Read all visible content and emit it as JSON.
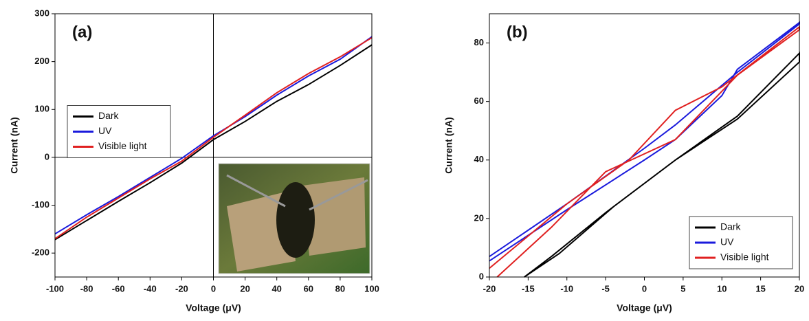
{
  "chart_data": [
    {
      "type": "line",
      "label": "(a)",
      "x_label": "Voltage (μV)",
      "y_label": "Current (nA)",
      "xlim": [
        -100,
        100
      ],
      "ylim": [
        -250,
        300
      ],
      "xticks": [
        -100,
        -80,
        -60,
        -40,
        -20,
        0,
        20,
        40,
        60,
        80,
        100
      ],
      "yticks": [
        -200,
        -100,
        0,
        100,
        200,
        300
      ],
      "zero_lines": true,
      "legend": "center left",
      "series": [
        {
          "name": "Dark",
          "color": "#000000",
          "x": [
            -100,
            -80,
            -60,
            -40,
            -20,
            0,
            20,
            40,
            60,
            80,
            100
          ],
          "values": [
            -172,
            -132,
            -92,
            -53,
            -12,
            37,
            75,
            117,
            152,
            192,
            235
          ]
        },
        {
          "name": "UV",
          "color": "#1a1adc",
          "x": [
            -100,
            -80,
            -60,
            -40,
            -20,
            0,
            20,
            40,
            60,
            80,
            100
          ],
          "values": [
            -160,
            -120,
            -82,
            -42,
            -2,
            45,
            85,
            130,
            170,
            205,
            252
          ]
        },
        {
          "name": "Visible light",
          "color": "#e02020",
          "x": [
            -100,
            -80,
            -60,
            -40,
            -20,
            0,
            20,
            40,
            60,
            80,
            100
          ],
          "values": [
            -170,
            -125,
            -85,
            -45,
            -8,
            42,
            88,
            135,
            175,
            210,
            250
          ]
        }
      ]
    },
    {
      "type": "line",
      "label": "(b)",
      "x_label": "Voltage (μV)",
      "y_label": "Current (nA)",
      "xlim": [
        -20,
        20
      ],
      "ylim": [
        0,
        90
      ],
      "xticks": [
        -20,
        -15,
        -10,
        -5,
        0,
        5,
        10,
        15,
        20
      ],
      "yticks": [
        0,
        20,
        40,
        60,
        80
      ],
      "zero_lines": false,
      "legend": "lower right",
      "series": [
        {
          "name": "Dark",
          "color": "#000000",
          "x": [
            -15.5,
            -12,
            -5,
            4,
            12,
            20,
            20,
            12,
            4,
            -4,
            -11,
            -15.5
          ],
          "values": [
            0,
            7,
            22,
            40,
            54,
            73.5,
            76.5,
            55,
            40,
            24,
            8,
            0
          ]
        },
        {
          "name": "UV",
          "color": "#1a1adc",
          "x": [
            -20,
            -10,
            0,
            4,
            10,
            12,
            20,
            20,
            12,
            4,
            0,
            -10,
            -20
          ],
          "values": [
            5.5,
            23,
            40,
            47,
            62,
            71,
            87,
            86.5,
            70,
            52,
            44,
            25,
            7
          ]
        },
        {
          "name": "Visible light",
          "color": "#e02020",
          "x": [
            -19,
            -12,
            -5,
            4,
            12,
            20,
            20,
            10,
            4,
            -2,
            -10,
            -20
          ],
          "values": [
            0,
            17,
            36,
            47,
            69,
            84.5,
            85.5,
            65,
            57,
            40,
            25,
            3
          ]
        }
      ]
    }
  ]
}
